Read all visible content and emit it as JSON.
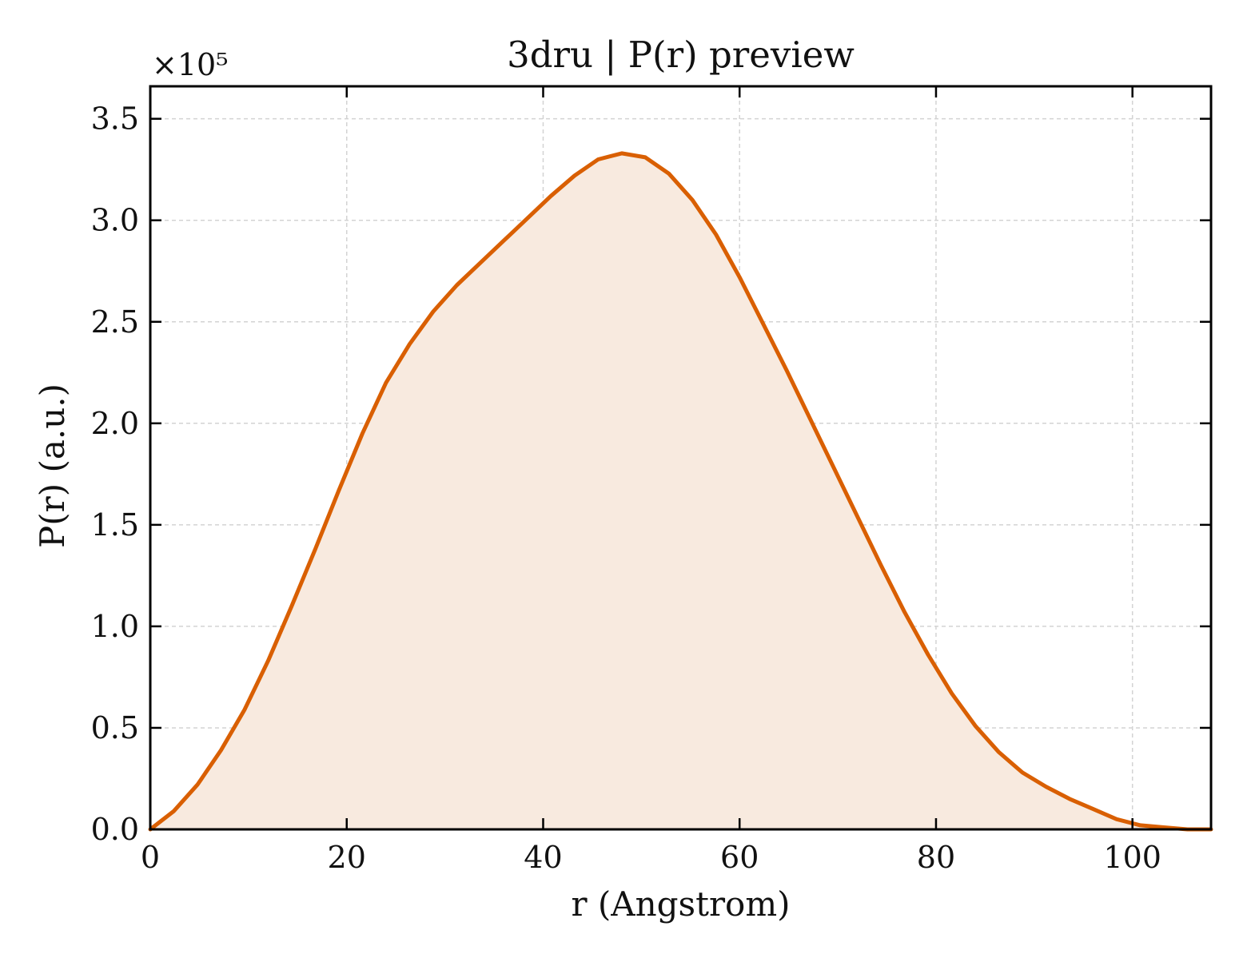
{
  "chart_data": {
    "type": "area",
    "title": "3dru | P(r) preview",
    "xlabel": "r (Angstrom)",
    "ylabel": "P(r) (a.u.)",
    "y_multiplier_label": "×10⁵",
    "xlim": [
      0,
      108
    ],
    "ylim": [
      0,
      3.66
    ],
    "xticks": [
      0,
      20,
      40,
      60,
      80,
      100
    ],
    "yticks": [
      0.0,
      0.5,
      1.0,
      1.5,
      2.0,
      2.5,
      3.0,
      3.5
    ],
    "xtick_labels": [
      "0",
      "20",
      "40",
      "60",
      "80",
      "100"
    ],
    "ytick_labels": [
      "0.0",
      "0.5",
      "1.0",
      "1.5",
      "2.0",
      "2.5",
      "3.0",
      "3.5"
    ],
    "grid": true,
    "y_units_scale": 100000,
    "series": [
      {
        "color": "#d95f02",
        "fill_color": "#f8eadf",
        "x": [
          0,
          2.4,
          4.8,
          7.2,
          9.6,
          12.0,
          14.4,
          16.8,
          19.2,
          21.6,
          24.0,
          26.4,
          28.8,
          31.2,
          33.6,
          36.0,
          38.4,
          40.8,
          43.2,
          45.6,
          48.0,
          50.4,
          52.8,
          55.2,
          57.6,
          60.0,
          62.4,
          64.8,
          67.2,
          69.6,
          72.0,
          74.4,
          76.8,
          79.2,
          81.6,
          84.0,
          86.4,
          88.8,
          91.2,
          93.6,
          96.0,
          98.4,
          100.8,
          103.2,
          105.6,
          108.0
        ],
        "y": [
          0.0,
          0.09,
          0.22,
          0.39,
          0.59,
          0.83,
          1.1,
          1.38,
          1.67,
          1.95,
          2.2,
          2.39,
          2.55,
          2.68,
          2.79,
          2.9,
          3.01,
          3.12,
          3.22,
          3.3,
          3.33,
          3.31,
          3.23,
          3.1,
          2.93,
          2.72,
          2.49,
          2.26,
          2.02,
          1.78,
          1.54,
          1.3,
          1.07,
          0.86,
          0.67,
          0.51,
          0.38,
          0.28,
          0.21,
          0.15,
          0.1,
          0.05,
          0.02,
          0.01,
          0.0,
          0.0
        ]
      }
    ]
  }
}
